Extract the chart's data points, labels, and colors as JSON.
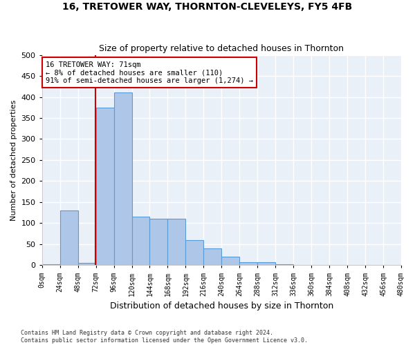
{
  "title": "16, TRETOWER WAY, THORNTON-CLEVELEYS, FY5 4FB",
  "subtitle": "Size of property relative to detached houses in Thornton",
  "xlabel": "Distribution of detached houses by size in Thornton",
  "ylabel": "Number of detached properties",
  "bin_edges": [
    0,
    24,
    48,
    72,
    96,
    120,
    144,
    168,
    192,
    216,
    240,
    264,
    288,
    312,
    336,
    360,
    384,
    408,
    432,
    456,
    480
  ],
  "bar_heights": [
    2,
    130,
    5,
    375,
    410,
    115,
    110,
    110,
    60,
    40,
    20,
    8,
    8,
    2,
    0,
    0,
    0,
    0,
    0,
    0
  ],
  "bar_color": "#aec6e8",
  "bar_edge_color": "#5b9bd5",
  "bg_color": "#eaf0f8",
  "grid_color": "#ffffff",
  "property_line_x": 71,
  "property_line_color": "#cc0000",
  "annotation_text": "16 TRETOWER WAY: 71sqm\n← 8% of detached houses are smaller (110)\n91% of semi-detached houses are larger (1,274) →",
  "annotation_box_color": "#cc0000",
  "footer_text": "Contains HM Land Registry data © Crown copyright and database right 2024.\nContains public sector information licensed under the Open Government Licence v3.0.",
  "ylim": [
    0,
    500
  ],
  "yticks": [
    0,
    50,
    100,
    150,
    200,
    250,
    300,
    350,
    400,
    450,
    500
  ]
}
